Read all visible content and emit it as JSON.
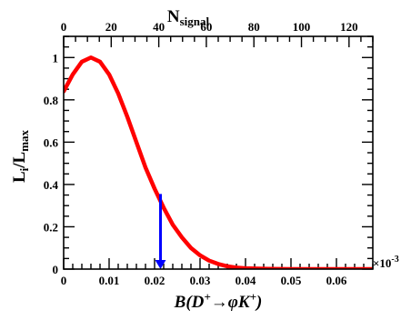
{
  "chart_data": {
    "type": "line",
    "ylabel": "L",
    "ylabel_sub": "i",
    "ylabel_mid": "/L",
    "ylabel_sub2": "max",
    "xlabel_pre": "B(D",
    "xlabel_sup1": "+",
    "xlabel_mid": "→φK",
    "xlabel_sup2": "+",
    "xlabel_post": ")",
    "top_axis_label": "N",
    "top_axis_label_sub": "signal",
    "x_scale_prefix": "×10",
    "x_scale_exp": "-3",
    "xlim": [
      0,
      0.068
    ],
    "ylim": [
      0,
      1.1
    ],
    "top_axis_lim": [
      0,
      130
    ],
    "x_ticks": [
      {
        "v": 0,
        "label": "0"
      },
      {
        "v": 0.01,
        "label": "0.01"
      },
      {
        "v": 0.02,
        "label": "0.02"
      },
      {
        "v": 0.03,
        "label": "0.03"
      },
      {
        "v": 0.04,
        "label": "0.04"
      },
      {
        "v": 0.05,
        "label": "0.05"
      },
      {
        "v": 0.06,
        "label": "0.06"
      }
    ],
    "y_ticks": [
      {
        "v": 0,
        "label": "0"
      },
      {
        "v": 0.2,
        "label": "0.2"
      },
      {
        "v": 0.4,
        "label": "0.4"
      },
      {
        "v": 0.6,
        "label": "0.6"
      },
      {
        "v": 0.8,
        "label": "0.8"
      },
      {
        "v": 1,
        "label": "1"
      }
    ],
    "top_ticks": [
      {
        "v": 0,
        "label": "0"
      },
      {
        "v": 20,
        "label": "20"
      },
      {
        "v": 40,
        "label": "40"
      },
      {
        "v": 60,
        "label": "60"
      },
      {
        "v": 80,
        "label": "80"
      },
      {
        "v": 100,
        "label": "100"
      },
      {
        "v": 120,
        "label": "120"
      }
    ],
    "series": [
      {
        "color": "#ff0000",
        "x": [
          0,
          0.002,
          0.004,
          0.006,
          0.008,
          0.01,
          0.012,
          0.014,
          0.016,
          0.018,
          0.02,
          0.022,
          0.024,
          0.026,
          0.028,
          0.03,
          0.032,
          0.034,
          0.036,
          0.038,
          0.04,
          0.045,
          0.05,
          0.055,
          0.06,
          0.065,
          0.068
        ],
        "y": [
          0.84,
          0.92,
          0.98,
          1.0,
          0.98,
          0.92,
          0.83,
          0.72,
          0.6,
          0.48,
          0.38,
          0.29,
          0.21,
          0.15,
          0.1,
          0.065,
          0.04,
          0.024,
          0.013,
          0.007,
          0.004,
          0.001,
          0.0,
          0.0,
          0.0,
          0.0,
          0.0
        ]
      }
    ],
    "upper_limit": {
      "x": 0.0213,
      "y": 0.355,
      "color": "#0000ff"
    }
  }
}
